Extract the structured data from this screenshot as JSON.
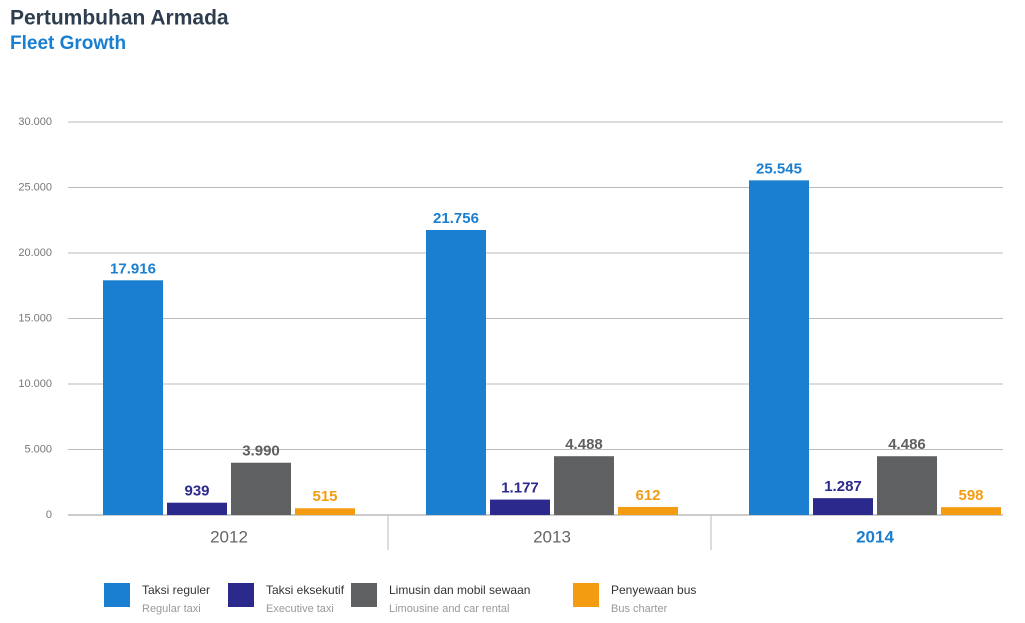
{
  "chart_data": {
    "type": "bar",
    "title": "Pertumbuhan Armada",
    "subtitle": "Fleet Growth",
    "categories": [
      "2012",
      "2013",
      "2014"
    ],
    "category_colors": [
      "#666666",
      "#666666",
      "#1a7fd0"
    ],
    "series": [
      {
        "name": "Taksi reguler",
        "name_en": "Regular taxi",
        "color": "#1a7fd0",
        "values": [
          17916,
          21756,
          25545
        ],
        "value_labels": [
          "17.916",
          "21.756",
          "25.545"
        ]
      },
      {
        "name": "Taksi eksekutif",
        "name_en": "Executive taxi",
        "color": "#2b2a8c",
        "values": [
          939,
          1177,
          1287
        ],
        "value_labels": [
          "939",
          "1.177",
          "1.287"
        ]
      },
      {
        "name": "Limusin dan mobil sewaan",
        "name_en": "Limousine and car rental",
        "color": "#5f6062",
        "values": [
          3990,
          4488,
          4486
        ],
        "value_labels": [
          "3.990",
          "4.488",
          "4.486"
        ]
      },
      {
        "name": "Penyewaan bus",
        "name_en": "Bus charter",
        "color": "#f39c12",
        "values": [
          515,
          612,
          598
        ],
        "value_labels": [
          "515",
          "612",
          "598"
        ]
      }
    ],
    "ylim": [
      0,
      30000
    ],
    "yticks": [
      0,
      {
        "value": 5000,
        "label": "5.000"
      },
      {
        "value": 10000,
        "label": "10.000"
      },
      {
        "value": 15000,
        "label": "15.000"
      },
      {
        "value": 20000,
        "label": "20.000"
      },
      {
        "value": 25000,
        "label": "25.000"
      },
      {
        "value": 30000,
        "label": "30.000"
      }
    ],
    "grid": true
  }
}
